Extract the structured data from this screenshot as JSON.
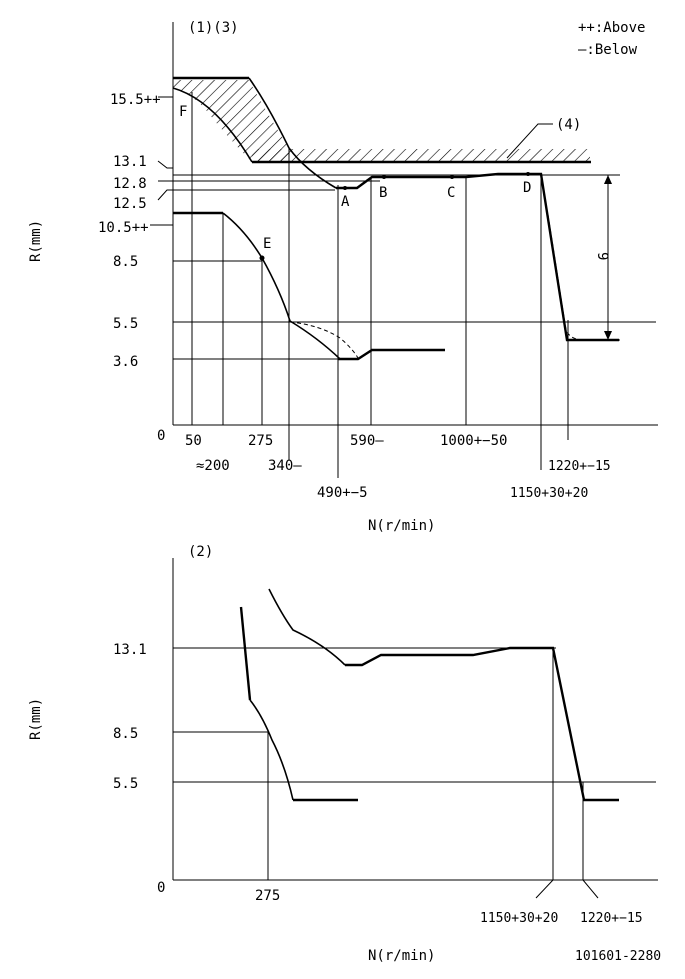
{
  "legend": {
    "above": "++:Above",
    "below": "—:Below"
  },
  "top": {
    "title": "(1)(3)",
    "label4": "(4)",
    "ylabel": "R(mm)",
    "xlabel": "N(r/min)",
    "y_ticks": [
      "15.5++",
      "13.1",
      "12.8",
      "12.5",
      "10.5++",
      "8.5",
      "5.5",
      "3.6",
      "0"
    ],
    "x_ticks": [
      "50",
      "≈200",
      "275",
      "340—",
      "490+−5",
      "590—",
      "1000+−50",
      "1150+30+20",
      "1220+−15"
    ],
    "points": [
      "A",
      "B",
      "C",
      "D",
      "E",
      "F"
    ],
    "dim_label": "9"
  },
  "bottom": {
    "title": "(2)",
    "ylabel": "R(mm)",
    "xlabel": "N(r/min)",
    "y_ticks": [
      "13.1",
      "8.5",
      "5.5",
      "0"
    ],
    "x_ticks": [
      "275",
      "1150+30+20",
      "1220+−15"
    ]
  },
  "code": "101601-2280"
}
